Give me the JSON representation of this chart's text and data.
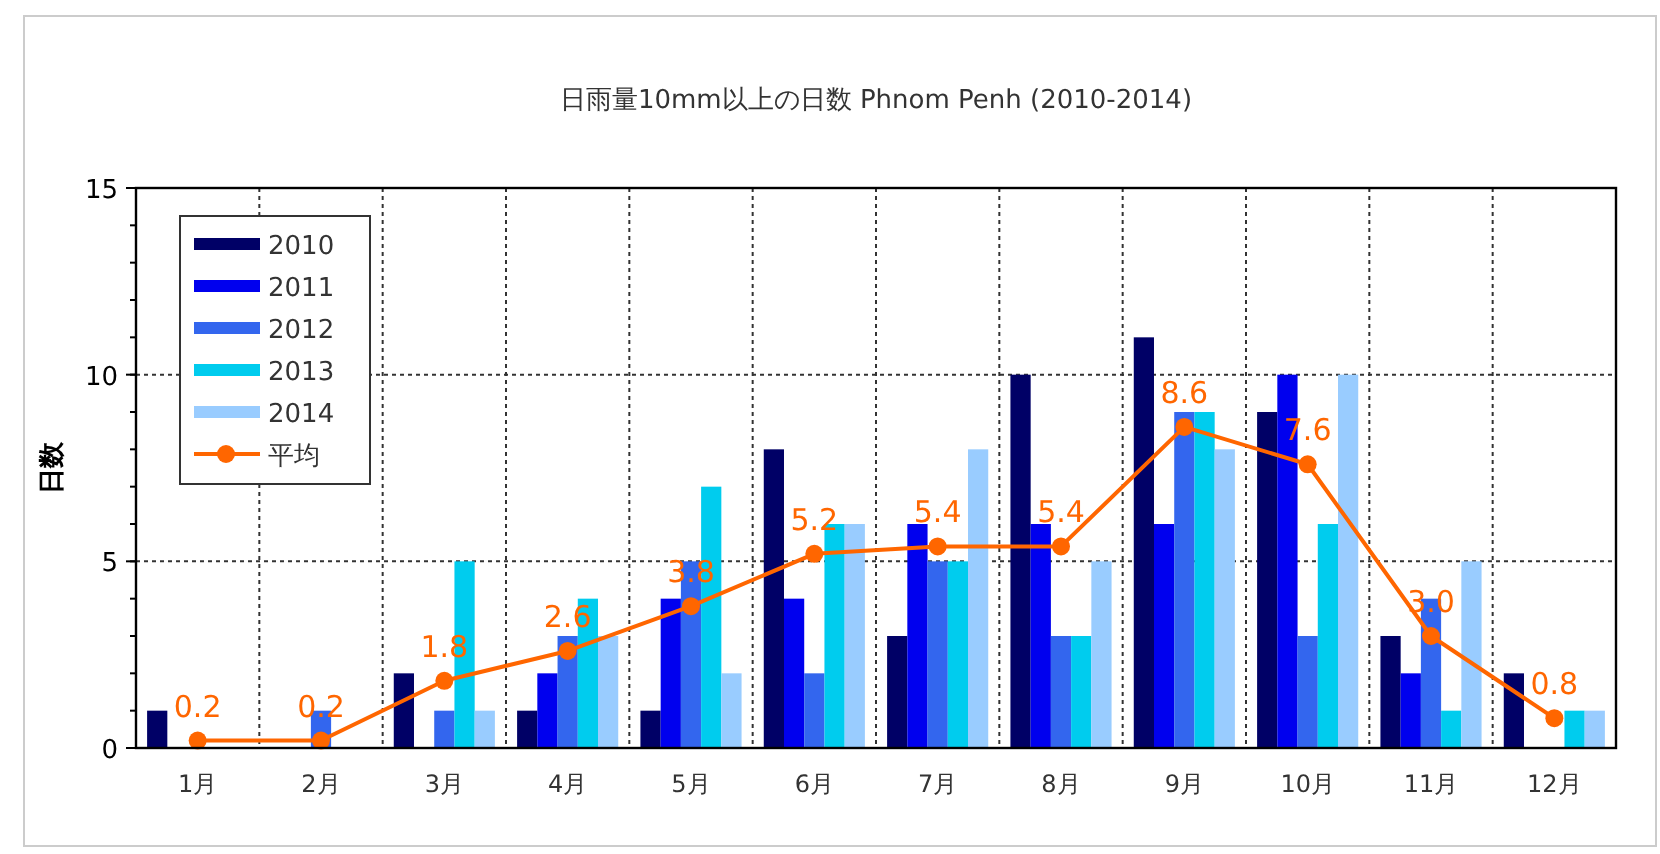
{
  "chart_data": {
    "type": "bar",
    "title": "日雨量10mm以上の日数 Phnom Penh (2010-2014)",
    "ylabel": "日数",
    "categories": [
      "1月",
      "2月",
      "3月",
      "4月",
      "5月",
      "6月",
      "7月",
      "8月",
      "9月",
      "10月",
      "11月",
      "12月"
    ],
    "series": [
      {
        "name": "2010",
        "color": "#000066",
        "values": [
          1,
          0,
          2,
          1,
          1,
          8,
          3,
          10,
          11,
          9,
          3,
          2
        ]
      },
      {
        "name": "2011",
        "color": "#0000ee",
        "values": [
          0,
          0,
          0,
          2,
          4,
          4,
          6,
          6,
          6,
          10,
          2,
          0
        ]
      },
      {
        "name": "2012",
        "color": "#3366ee",
        "values": [
          0,
          1,
          1,
          3,
          5,
          2,
          5,
          3,
          9,
          3,
          4,
          0
        ]
      },
      {
        "name": "2013",
        "color": "#00ccee",
        "values": [
          0,
          0,
          5,
          4,
          7,
          6,
          5,
          3,
          9,
          6,
          1,
          1
        ]
      },
      {
        "name": "2014",
        "color": "#99ccff",
        "values": [
          0,
          0,
          1,
          3,
          2,
          6,
          8,
          5,
          8,
          10,
          5,
          1
        ]
      },
      {
        "name": "平均",
        "type": "line",
        "color": "#ff6600",
        "marker": "circle",
        "values": [
          0.2,
          0.2,
          1.8,
          2.6,
          3.8,
          5.2,
          5.4,
          5.4,
          8.6,
          7.6,
          3.0,
          0.8
        ],
        "value_labels": [
          "0.2",
          "0.2",
          "1.8",
          "2.6",
          "3.8",
          "5.2",
          "5.4",
          "5.4",
          "8.6",
          "7.6",
          "3.0",
          "0.8"
        ]
      }
    ],
    "ylim": [
      0,
      15
    ],
    "yticks": [
      0,
      5,
      10,
      15
    ],
    "grid": true,
    "legend": "top left"
  }
}
